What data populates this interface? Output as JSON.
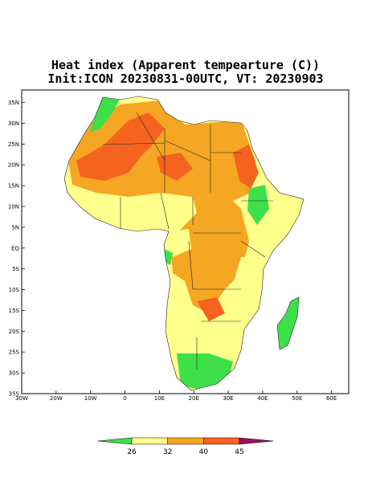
{
  "map": {
    "title": "Heat index (Apparent tempearture (C))",
    "subtitle": "Init:ICON 20230831-00UTC, VT: 20230903",
    "lonlim": [
      -30,
      65
    ],
    "latlim": [
      -35,
      38
    ],
    "lon_ticks": [
      {
        "value": -30,
        "label": "30W"
      },
      {
        "value": -20,
        "label": "20W"
      },
      {
        "value": -10,
        "label": "10W"
      },
      0,
      {
        "value": 10,
        "label": "10E"
      },
      {
        "value": 20,
        "label": "20E"
      },
      {
        "value": 30,
        "label": "30E"
      },
      {
        "value": 40,
        "label": "40E"
      },
      {
        "value": 50,
        "label": "50E"
      },
      {
        "value": 60,
        "label": "60E"
      }
    ],
    "lat_ticks": [
      {
        "value": 35,
        "label": "35N"
      },
      {
        "value": 30,
        "label": "30N"
      },
      {
        "value": 25,
        "label": "25N"
      },
      {
        "value": 20,
        "label": "20N"
      },
      {
        "value": 15,
        "label": "15N"
      },
      {
        "value": 10,
        "label": "10N"
      },
      {
        "value": 5,
        "label": "5N"
      },
      {
        "value": 0,
        "label": "EQ"
      },
      {
        "value": -5,
        "label": "5S"
      },
      {
        "value": -10,
        "label": "10S"
      },
      {
        "value": -15,
        "label": "15S"
      },
      {
        "value": -20,
        "label": "20S"
      },
      {
        "value": -25,
        "label": "25S"
      },
      {
        "value": -30,
        "label": "30S"
      },
      {
        "value": -35,
        "label": "35S"
      }
    ],
    "colorbar": {
      "levels": [
        26,
        32,
        40,
        45
      ],
      "colors": [
        "#3ee04a",
        "#ffff8c",
        "#f5a623",
        "#f5641e",
        "#99115f"
      ]
    }
  }
}
